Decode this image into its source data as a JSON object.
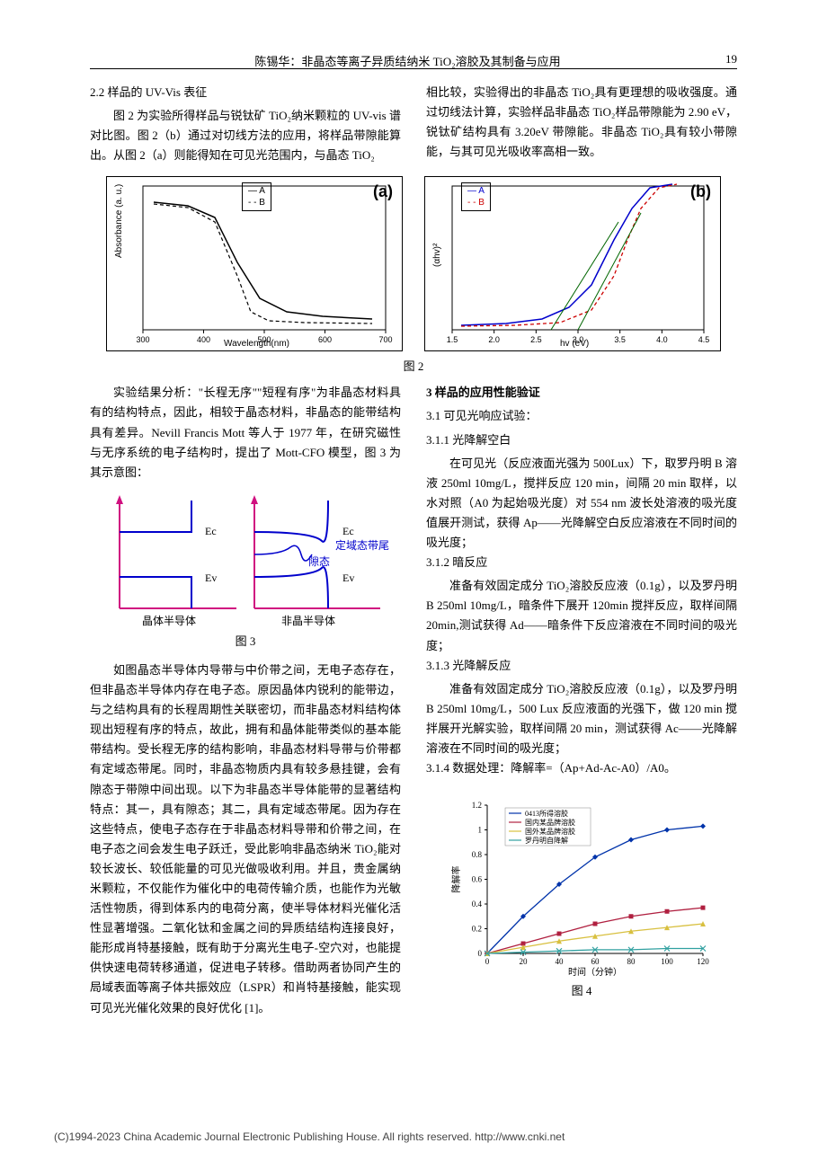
{
  "header": {
    "title": "陈锡华：非晶态等离子异质结纳米 TiO₂溶胶及其制备与应用",
    "page_num": "19"
  },
  "s22": {
    "heading": "2.2  样品的 UV-Vis 表征",
    "p1": "图 2 为实验所得样品与锐钛矿 TiO₂纳米颗粒的 UV-vis 谱对比图。图 2（b）通过对切线方法的应用，将样品带隙能算出。从图 2（a）则能得知在可见光范围内，与晶态 TiO₂",
    "p2": "相比较，实验得出的非晶态 TiO₂具有更理想的吸收强度。通过切线法计算，实验样品非晶态 TiO₂样品带隙能为 2.90 eV，锐钛矿结构具有 3.20eV 带隙能。非晶态 TiO₂具有较小带隙能，与其可见光吸收率高相一致。"
  },
  "fig2": {
    "caption": "图 2",
    "panel_a": {
      "label": "(a)",
      "legend_a": "— A",
      "legend_b": "- - B",
      "xaxis": "Wavelength(nm)",
      "yaxis": "Absorbance (a. u.)",
      "xticks": [
        "300",
        "400",
        "500",
        "600",
        "700"
      ],
      "line_a": {
        "color": "#000000",
        "dash": "none",
        "pts": [
          [
            52,
            28
          ],
          [
            90,
            32
          ],
          [
            120,
            45
          ],
          [
            145,
            95
          ],
          [
            170,
            135
          ],
          [
            200,
            150
          ],
          [
            240,
            155
          ],
          [
            295,
            158
          ]
        ]
      },
      "line_b": {
        "color": "#000000",
        "dash": "4,3",
        "pts": [
          [
            52,
            30
          ],
          [
            90,
            34
          ],
          [
            120,
            50
          ],
          [
            145,
            110
          ],
          [
            160,
            150
          ],
          [
            180,
            160
          ],
          [
            220,
            162
          ],
          [
            295,
            163
          ]
        ]
      }
    },
    "panel_b": {
      "label": "(b)",
      "legend_a": "— A",
      "legend_b": "- - B",
      "xaxis": "hv (eV)",
      "yaxis": "(αhv)²",
      "xticks": [
        "1.5",
        "2.0",
        "2.5",
        "3.0",
        "3.5",
        "4.0",
        "4.5"
      ],
      "line_a": {
        "color": "#0000cc",
        "dash": "none",
        "pts": [
          [
            40,
            165
          ],
          [
            90,
            163
          ],
          [
            130,
            158
          ],
          [
            160,
            145
          ],
          [
            185,
            120
          ],
          [
            210,
            70
          ],
          [
            230,
            35
          ],
          [
            250,
            12
          ],
          [
            275,
            8
          ]
        ]
      },
      "line_b": {
        "color": "#cc0000",
        "dash": "4,3",
        "pts": [
          [
            40,
            166
          ],
          [
            100,
            165
          ],
          [
            150,
            162
          ],
          [
            185,
            148
          ],
          [
            210,
            110
          ],
          [
            225,
            70
          ],
          [
            240,
            35
          ],
          [
            260,
            12
          ],
          [
            280,
            8
          ]
        ]
      },
      "tan1": {
        "color": "#006600",
        "pts": [
          [
            140,
            170
          ],
          [
            215,
            50
          ]
        ]
      },
      "tan2": {
        "color": "#006600",
        "pts": [
          [
            170,
            170
          ],
          [
            240,
            40
          ]
        ]
      }
    }
  },
  "mid": {
    "p1": "实验结果分析：\"长程无序\"\"短程有序\"为非晶态材料具有的结构特点，因此，相较于晶态材料，非晶态的能带结构具有差异。Nevill Francis Mott 等人于 1977 年，在研究磁性与无序系统的电子结构时，提出了 Mott-CFO 模型，图 3 为其示意图："
  },
  "fig3": {
    "caption": "图 3",
    "left_label": "晶体半导体",
    "right_label": "非晶半导体",
    "ec": "Ec",
    "ev": "Ev",
    "t1": "定域态带尾",
    "t2": "隙态",
    "line_color": "#0000cc",
    "arrow_color": "#d01080"
  },
  "mid2": {
    "p1": "如图晶态半导体内导带与中价带之间，无电子态存在，但非晶态半导体内存在电子态。原因晶体内锐利的能带边，与之结构具有的长程周期性关联密切，而非晶态材料结构体现出短程有序的特点，故此，拥有和晶体能带类似的基本能带结构。受长程无序的结构影响，非晶态材料导带与价带都有定域态带尾。同时，非晶态物质内具有较多悬挂键，会有隙态于带隙中间出现。以下为非晶态半导体能带的显著结构特点：其一，具有隙态；其二，具有定域态带尾。因为存在这些特点，使电子态存在于非晶态材料导带和价带之间，在电子态之间会发生电子跃迁，受此影响非晶态纳米 TiO₂能对较长波长、较低能量的可见光做吸收利用。并且，贵金属纳米颗粒，不仅能作为催化中的电荷传输介质，也能作为光敏活性物质，得到体系内的电荷分离，使半导体材料光催化活性显著增强。二氧化钛和金属之间的异质结结构连接良好，能形成肖特基接触，既有助于分离光生电子-空穴对，也能提供快速电荷转移通道，促进电子转移。借助两者协同产生的局域表面等离子体共振效应（LSPR）和肖特基接触，能实现可见光光催化效果的良好优化 [1]。"
  },
  "s3": {
    "heading": "3  样品的应用性能验证",
    "s31": "3.1  可见光响应试验：",
    "s311h": "3.1.1  光降解空白",
    "s311p": "在可见光（反应液面光强为 500Lux）下，取罗丹明 B 溶液 250ml 10mg/L，搅拌反应 120 min，间隔 20 min 取样，以水对照（A0 为起始吸光度）对 554 nm 波长处溶液的吸光度值展开测试，获得 Ap——光降解空白反应溶液在不同时间的吸光度；",
    "s312h": "3.1.2  暗反应",
    "s312p": "准备有效固定成分 TiO₂溶胶反应液（0.1g），以及罗丹明 B 250ml 10mg/L，暗条件下展开 120min 搅拌反应，取样间隔 20min,测试获得 Ad——暗条件下反应溶液在不同时间的吸光度；",
    "s313h": "3.1.3  光降解反应",
    "s313p": "准备有效固定成分 TiO₂溶胶反应液（0.1g），以及罗丹明 B 250ml 10mg/L，500 Lux 反应液面的光强下，做 120 min 搅拌展开光解实验，取样间隔 20 min，测试获得 Ac——光降解溶液在不同时间的吸光度；",
    "s314": "3.1.4  数据处理：降解率=（Ap+Ad-Ac-A0）/A0。"
  },
  "fig4": {
    "caption": "图 4",
    "xaxis": "时间（分钟）",
    "yaxis": "降解率",
    "xticks": [
      "0",
      "20",
      "40",
      "60",
      "80",
      "100",
      "120"
    ],
    "yticks": [
      "0",
      "0.2",
      "0.4",
      "0.6",
      "0.8",
      "1",
      "1.2"
    ],
    "legend": [
      "0413所得溶胶",
      "国内某品牌溶胶",
      "国外某品牌溶胶",
      "罗丹明自降解"
    ],
    "series": [
      {
        "color": "#0033aa",
        "marker": "diamond",
        "pts": [
          [
            0,
            0
          ],
          [
            20,
            0.3
          ],
          [
            40,
            0.56
          ],
          [
            60,
            0.78
          ],
          [
            80,
            0.92
          ],
          [
            100,
            1.0
          ],
          [
            120,
            1.03
          ]
        ]
      },
      {
        "color": "#b02040",
        "marker": "square",
        "pts": [
          [
            0,
            0
          ],
          [
            20,
            0.08
          ],
          [
            40,
            0.16
          ],
          [
            60,
            0.24
          ],
          [
            80,
            0.3
          ],
          [
            100,
            0.34
          ],
          [
            120,
            0.37
          ]
        ]
      },
      {
        "color": "#d8c040",
        "marker": "triangle",
        "pts": [
          [
            0,
            0
          ],
          [
            20,
            0.05
          ],
          [
            40,
            0.1
          ],
          [
            60,
            0.14
          ],
          [
            80,
            0.18
          ],
          [
            100,
            0.21
          ],
          [
            120,
            0.24
          ]
        ]
      },
      {
        "color": "#30a0a0",
        "marker": "cross",
        "pts": [
          [
            0,
            0
          ],
          [
            20,
            0.01
          ],
          [
            40,
            0.02
          ],
          [
            60,
            0.03
          ],
          [
            80,
            0.03
          ],
          [
            100,
            0.04
          ],
          [
            120,
            0.04
          ]
        ]
      }
    ]
  },
  "footer": {
    "copyright": "(C)1994-2023 China Academic Journal Electronic Publishing House. All rights reserved.    http://www.cnki.net"
  }
}
